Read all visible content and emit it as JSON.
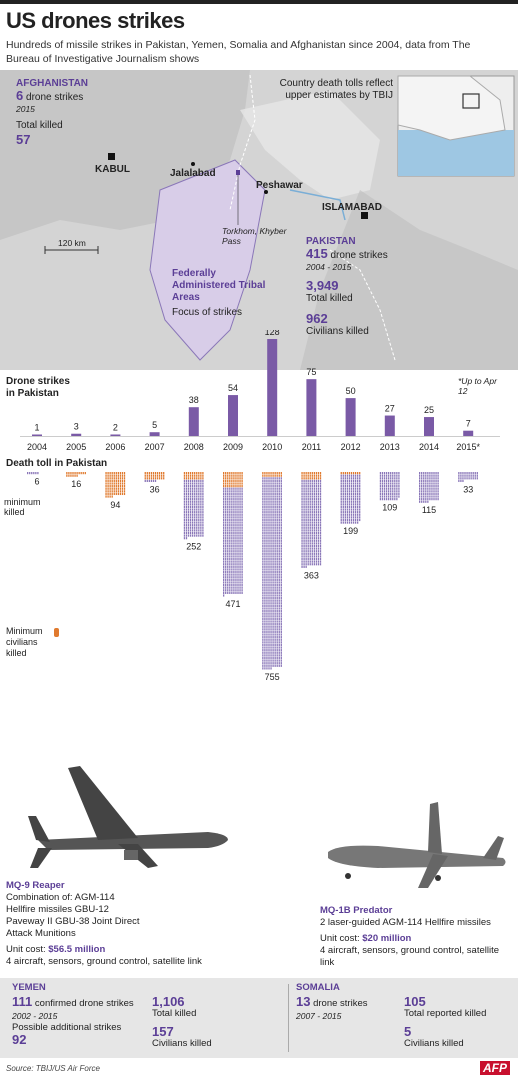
{
  "header": {
    "title": "US drones strikes",
    "subtitle": "Hundreds of missile strikes in Pakistan, Yemen, Somalia and Afghanistan since 2004, data from The Bureau of Investigative Journalism shows"
  },
  "map": {
    "afghanistan": {
      "name": "AFGHANISTAN",
      "strikes": "6",
      "strikes_label": "drone strikes",
      "year": "2015",
      "killed_label": "Total killed",
      "killed": "57"
    },
    "note": "Country death tolls reflect upper estimates by TBIJ",
    "cities": {
      "kabul": "KABUL",
      "jalalabad": "Jalalabad",
      "peshawar": "Peshawar",
      "islamabad": "ISLAMABAD",
      "torkham": "Torkhom, Khyber Pass"
    },
    "scale": "120 km",
    "fata": {
      "title": "Federally Administered Tribal Areas",
      "sub": "Focus of strikes"
    },
    "pakistan": {
      "name": "PAKISTAN",
      "strikes": "415",
      "strikes_label": "drone strikes",
      "years": "2004 - 2015",
      "killed": "3,949",
      "killed_label": "Total killed",
      "civilians": "962",
      "civilians_label": "Civilians killed"
    }
  },
  "strikes_label": "Drone strikes in Pakistan",
  "death_label": "Death toll in Pakistan",
  "min_killed_label": "minimum killed",
  "min_civ_label": "Minimum civilians killed",
  "footnote": "*Up to Apr 12",
  "chart_data": {
    "type": "bar",
    "categories": [
      "2004",
      "2005",
      "2006",
      "2007",
      "2008",
      "2009",
      "2010",
      "2011",
      "2012",
      "2013",
      "2014",
      "2015*"
    ],
    "series": [
      {
        "name": "Drone strikes in Pakistan",
        "values": [
          1,
          3,
          2,
          5,
          38,
          54,
          128,
          75,
          50,
          27,
          25,
          7
        ]
      },
      {
        "name": "Death toll in Pakistan",
        "values": [
          6,
          16,
          94,
          36,
          252,
          471,
          755,
          363,
          199,
          109,
          115,
          33
        ]
      },
      {
        "name": "Minimum civilians killed",
        "values": [
          0,
          12,
          94,
          25,
          25,
          56,
          18,
          25,
          1,
          0,
          0,
          0
        ]
      }
    ]
  },
  "drones": {
    "reaper": {
      "name": "MQ-9 Reaper",
      "desc": "Combination of: AGM-114 Hellfire missiles GBU-12 Paveway II GBU-38 Joint Direct Attack Munitions",
      "cost_label": "Unit cost:",
      "cost": "$56.5 million",
      "extra": "4 aircraft, sensors, ground control, satellite link"
    },
    "predator": {
      "name": "MQ-1B Predator",
      "desc": "2 laser-guided AGM-114 Hellfire missiles",
      "cost_label": "Unit cost:",
      "cost": "$20 million",
      "extra": "4 aircraft, sensors, ground control, satellite link"
    }
  },
  "yemen": {
    "name": "YEMEN",
    "strikes": "111",
    "strikes_label": "confirmed drone strikes",
    "years": "2002 - 2015",
    "possible_label": "Possible additional strikes",
    "possible": "92",
    "killed": "1,106",
    "killed_label": "Total killed",
    "civilians": "157",
    "civilians_label": "Civilians killed"
  },
  "somalia": {
    "name": "SOMALIA",
    "strikes": "13",
    "strikes_label": "drone strikes",
    "years": "2007 - 2015",
    "killed": "105",
    "killed_label": "Total reported killed",
    "civilians": "5",
    "civilians_label": "Civilians killed"
  },
  "source": "Source: TBIJ/US Air Force",
  "brand": "AFP",
  "colors": {
    "purple": "#7a5aa6",
    "dark_purple": "#5b3e96",
    "orange": "#e07a2e",
    "dead": "#8a77b8",
    "map_land": "#cfcfcf",
    "fata": "#d8cde8"
  }
}
